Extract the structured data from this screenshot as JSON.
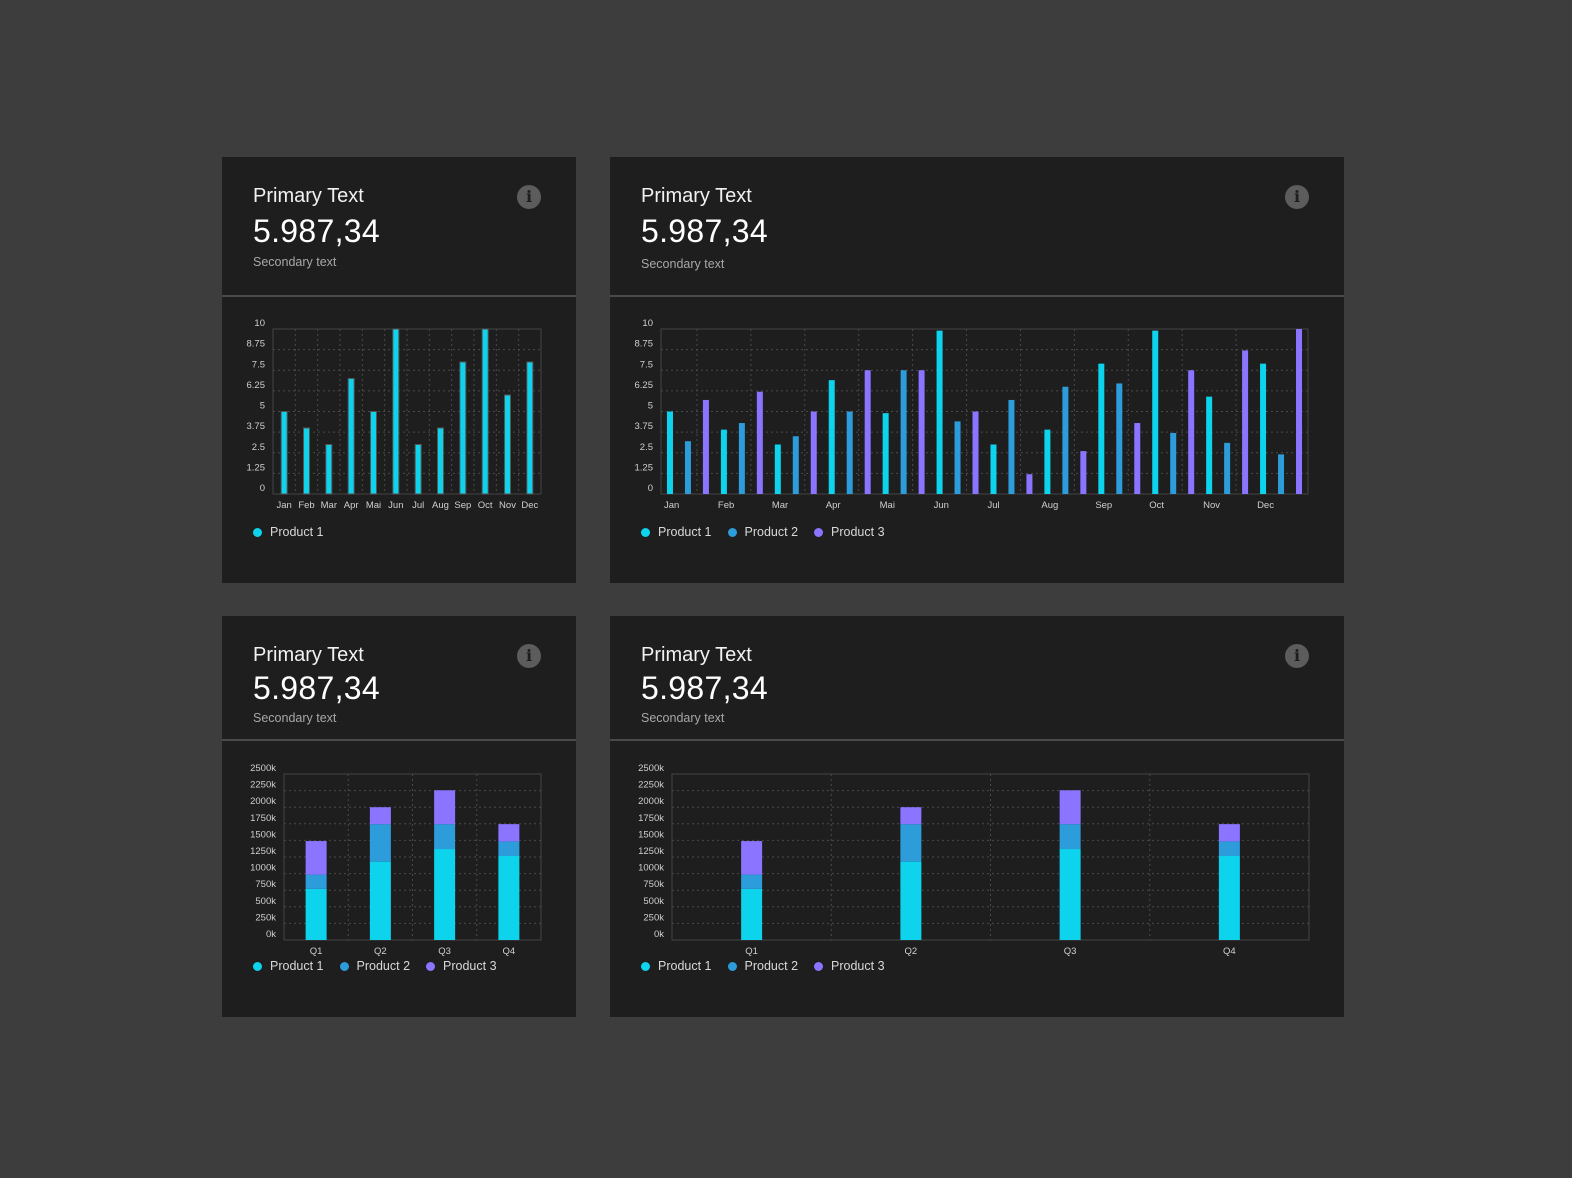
{
  "colors": {
    "background": "#3d3d3d",
    "card": "#1e1e1e",
    "product1": "#0dd3ec",
    "product2": "#2d9cdb",
    "product3": "#8b74ff",
    "grid": "#4a4a4a"
  },
  "cards": [
    {
      "title": "Primary Text",
      "value": "5.987,34",
      "secondary": "Secondary text",
      "icon": "info-icon",
      "legend": [
        "Product 1"
      ]
    },
    {
      "title": "Primary Text",
      "value": "5.987,34",
      "secondary": "Secondary text",
      "icon": "info-icon",
      "legend": [
        "Product 1",
        "Product 2",
        "Product 3"
      ]
    },
    {
      "title": "Primary Text",
      "value": "5.987,34",
      "secondary": "Secondary text",
      "icon": "info-icon",
      "legend": [
        "Product 1",
        "Product 2",
        "Product 3"
      ]
    },
    {
      "title": "Primary Text",
      "value": "5.987,34",
      "secondary": "Secondary text",
      "icon": "info-icon",
      "legend": [
        "Product 1",
        "Product 2",
        "Product 3"
      ]
    }
  ],
  "chart_data": [
    {
      "type": "bar",
      "categories": [
        "Jan",
        "Feb",
        "Mar",
        "Apr",
        "Mai",
        "Jun",
        "Jul",
        "Aug",
        "Sep",
        "Oct",
        "Nov",
        "Dec"
      ],
      "yticks": [
        "0",
        "1.25",
        "2.5",
        "3.75",
        "5",
        "6.25",
        "7.5",
        "8.75",
        "10"
      ],
      "ylim": [
        0,
        10
      ],
      "grid": true,
      "legend": "bottom-left",
      "series": [
        {
          "name": "Product 1",
          "values": [
            5,
            4,
            3,
            7,
            5,
            10,
            3,
            4,
            8,
            10,
            6,
            8
          ]
        }
      ]
    },
    {
      "type": "bar",
      "categories": [
        "Jan",
        "Feb",
        "Mar",
        "Apr",
        "Mai",
        "Jun",
        "Jul",
        "Aug",
        "Sep",
        "Oct",
        "Nov",
        "Dec"
      ],
      "yticks": [
        "0",
        "1.25",
        "2.5",
        "3.75",
        "5",
        "6.25",
        "7.5",
        "8.75",
        "10"
      ],
      "ylim": [
        0,
        10
      ],
      "grid": true,
      "legend": "bottom-left",
      "series": [
        {
          "name": "Product 1",
          "values": [
            5,
            3.9,
            3,
            6.9,
            4.9,
            9.9,
            3,
            3.9,
            7.9,
            9.9,
            5.9,
            7.9
          ]
        },
        {
          "name": "Product 2",
          "values": [
            3.2,
            4.3,
            3.5,
            5,
            7.5,
            4.4,
            5.7,
            6.5,
            6.7,
            3.7,
            3.1,
            2.4
          ]
        },
        {
          "name": "Product 3",
          "values": [
            5.7,
            6.2,
            5,
            7.5,
            7.5,
            5,
            1.2,
            2.6,
            4.3,
            7.5,
            8.7,
            10
          ]
        }
      ]
    },
    {
      "type": "bar",
      "stacked": true,
      "categories": [
        "Q1",
        "Q2",
        "Q3",
        "Q4"
      ],
      "yticks": [
        "0k",
        "250k",
        "500k",
        "750k",
        "1000k",
        "1250k",
        "1500k",
        "1750k",
        "2000k",
        "2250k",
        "2500k"
      ],
      "ylim": [
        0,
        2500
      ],
      "grid": true,
      "legend": "bottom-left",
      "series": [
        {
          "name": "Product 1",
          "values": [
            770,
            1180,
            1370,
            1265
          ]
        },
        {
          "name": "Product 2",
          "values": [
            215,
            565,
            375,
            220
          ]
        },
        {
          "name": "Product 3",
          "values": [
            505,
            255,
            510,
            260
          ]
        }
      ]
    },
    {
      "type": "bar",
      "stacked": true,
      "categories": [
        "Q1",
        "Q2",
        "Q3",
        "Q4"
      ],
      "yticks": [
        "0k",
        "250k",
        "500k",
        "750k",
        "1000k",
        "1250k",
        "1500k",
        "1750k",
        "2000k",
        "2250k",
        "2500k"
      ],
      "ylim": [
        0,
        2500
      ],
      "grid": true,
      "legend": "bottom-left",
      "series": [
        {
          "name": "Product 1",
          "values": [
            770,
            1180,
            1370,
            1265
          ]
        },
        {
          "name": "Product 2",
          "values": [
            215,
            565,
            375,
            220
          ]
        },
        {
          "name": "Product 3",
          "values": [
            505,
            255,
            510,
            260
          ]
        }
      ]
    }
  ]
}
